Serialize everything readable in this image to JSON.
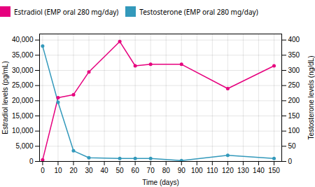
{
  "chart_data": {
    "type": "line",
    "xlabel": "Time (days)",
    "ylabel": "Estradiol levels (pg/mL)",
    "y2label": "Testosterone levels (ng/dL)",
    "x": [
      0,
      10,
      20,
      30,
      50,
      60,
      70,
      90,
      120,
      150
    ],
    "series": [
      {
        "name": "Estradiol (EMP oral 280 mg/day)",
        "color": "#e6007e",
        "marker": "circle",
        "values": [
          500,
          21000,
          22000,
          29500,
          39500,
          31500,
          32000,
          32000,
          24000,
          31500
        ]
      },
      {
        "name": "Testosterone (EMP oral 280 mg/day)",
        "color": "#3399bb",
        "marker": "circle",
        "axis": "y2",
        "values": [
          380,
          195,
          35,
          12,
          10,
          10,
          10,
          3,
          20,
          10
        ]
      }
    ],
    "xlim": [
      -2,
      155
    ],
    "xticks": [
      0,
      10,
      20,
      30,
      40,
      50,
      60,
      70,
      80,
      90,
      100,
      110,
      120,
      130,
      140,
      150
    ],
    "ylim": [
      0,
      42000
    ],
    "yticks": [
      0,
      {
        "value": 5000,
        "label": "5,000"
      },
      {
        "value": 10000,
        "label": "10,000"
      },
      {
        "value": 15000,
        "label": "15,000"
      },
      {
        "value": 20000,
        "label": "20,000"
      },
      {
        "value": 25000,
        "label": "25,000"
      },
      {
        "value": 30000,
        "label": "30,000"
      },
      {
        "value": 35000,
        "label": "35,000"
      },
      {
        "value": 40000,
        "label": "40,000"
      }
    ],
    "y2lim": [
      0,
      420
    ],
    "y2ticks": [
      0,
      50,
      100,
      150,
      200,
      250,
      300,
      350,
      400
    ],
    "grid": true,
    "legend": "top"
  }
}
